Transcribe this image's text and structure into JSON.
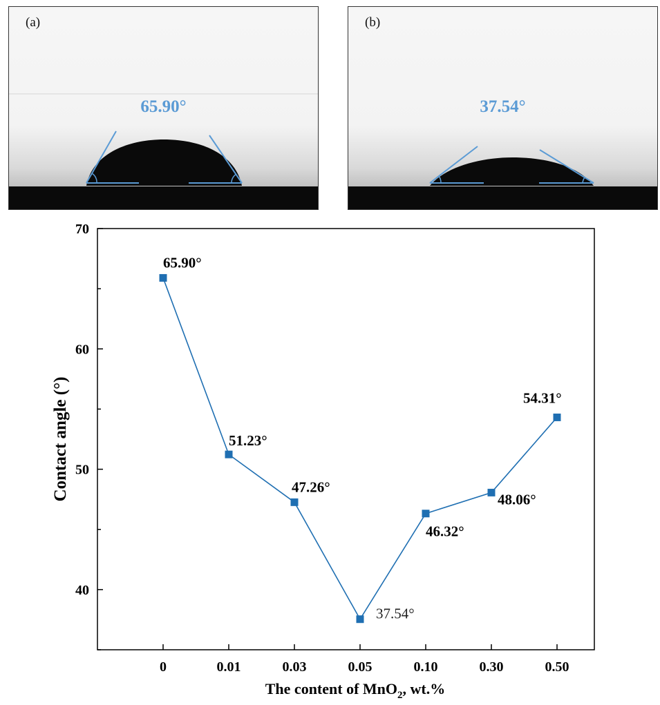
{
  "panels": [
    {
      "label": "(a)",
      "angle_text": "65.90°"
    },
    {
      "label": "(b)",
      "angle_text": "37.54°"
    }
  ],
  "colors": {
    "series": "#1f6fb2",
    "panel_annotation": "#5b9bd5",
    "axis": "#000000"
  },
  "chart_data": {
    "type": "line",
    "categories": [
      "0",
      "0.01",
      "0.03",
      "0.05",
      "0.10",
      "0.30",
      "0.50"
    ],
    "series": [
      {
        "values": [
          65.9,
          51.23,
          47.26,
          37.54,
          46.32,
          48.06,
          54.31
        ],
        "marker": "square"
      }
    ],
    "data_labels": [
      "65.90°",
      "51.23°",
      "47.26°",
      "37.54°",
      "46.32°",
      "48.06°",
      "54.31°"
    ],
    "xlabel_main": "The content of MnO",
    "xlabel_sub": "2",
    "xlabel_tail": ",  wt.%",
    "ylabel": "Contact angle (°)",
    "ylim": [
      35,
      70
    ],
    "yticks": [
      "40",
      "50",
      "60",
      "70"
    ],
    "grid": false,
    "legend": false
  }
}
